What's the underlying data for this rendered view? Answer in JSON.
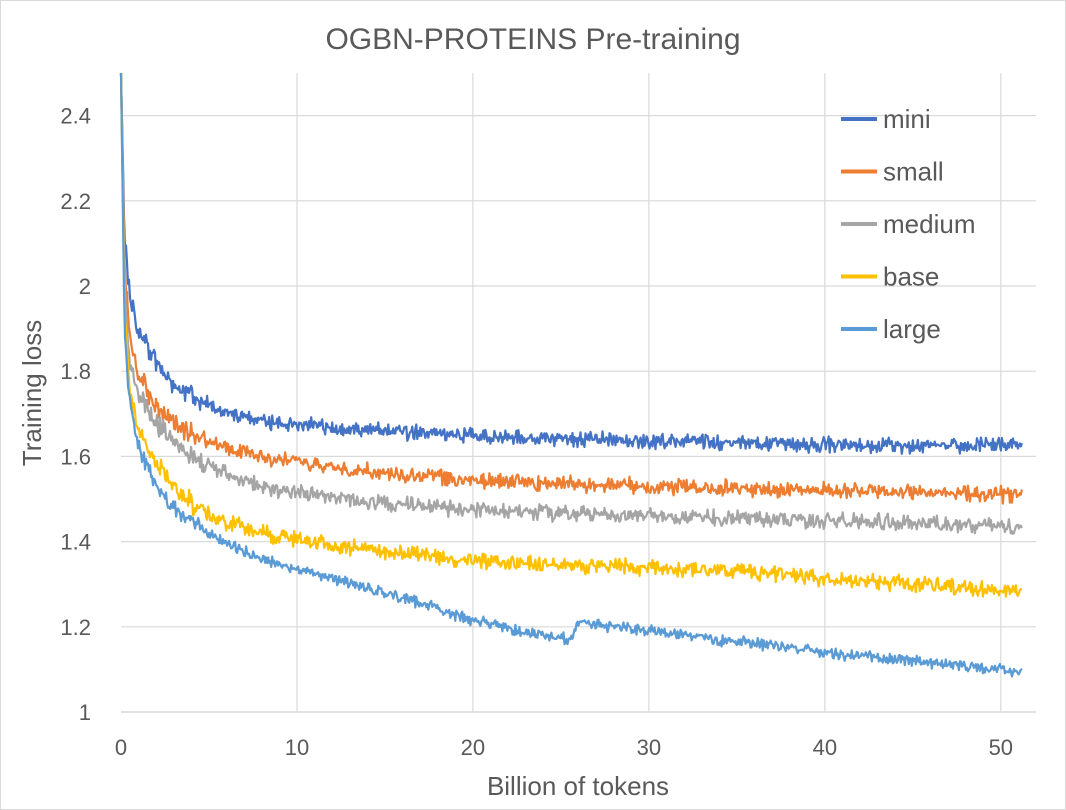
{
  "chart_data": {
    "type": "line",
    "title": "OGBN-PROTEINS Pre-training",
    "xlabel": "Billion of tokens",
    "ylabel": "Training loss",
    "xlim": [
      0,
      52
    ],
    "ylim": [
      1,
      2.5
    ],
    "xticks": [
      0,
      10,
      20,
      30,
      40,
      50
    ],
    "yticks": [
      1,
      1.2,
      1.4,
      1.6,
      1.8,
      2,
      2.2,
      2.4
    ],
    "x_end": 51.2,
    "grid": true,
    "legend_position": "top-right",
    "series": [
      {
        "name": "mini",
        "color": "#4472C4",
        "noise": 0.022,
        "points": [
          [
            0,
            2.5
          ],
          [
            0.2,
            2.12
          ],
          [
            0.5,
            1.97
          ],
          [
            1,
            1.9
          ],
          [
            2,
            1.82
          ],
          [
            3,
            1.77
          ],
          [
            4,
            1.74
          ],
          [
            5,
            1.72
          ],
          [
            6,
            1.7
          ],
          [
            8,
            1.685
          ],
          [
            10,
            1.675
          ],
          [
            15,
            1.66
          ],
          [
            20,
            1.648
          ],
          [
            25,
            1.642
          ],
          [
            30,
            1.635
          ],
          [
            35,
            1.632
          ],
          [
            40,
            1.628
          ],
          [
            45,
            1.625
          ],
          [
            51.2,
            1.625
          ]
        ]
      },
      {
        "name": "small",
        "color": "#ED7D31",
        "noise": 0.022,
        "points": [
          [
            0,
            2.5
          ],
          [
            0.2,
            2.05
          ],
          [
            0.5,
            1.88
          ],
          [
            1,
            1.79
          ],
          [
            2,
            1.72
          ],
          [
            3,
            1.68
          ],
          [
            4,
            1.655
          ],
          [
            5,
            1.635
          ],
          [
            6,
            1.62
          ],
          [
            8,
            1.6
          ],
          [
            10,
            1.585
          ],
          [
            15,
            1.56
          ],
          [
            20,
            1.545
          ],
          [
            25,
            1.535
          ],
          [
            30,
            1.53
          ],
          [
            35,
            1.525
          ],
          [
            40,
            1.52
          ],
          [
            45,
            1.515
          ],
          [
            51.2,
            1.51
          ]
        ]
      },
      {
        "name": "medium",
        "color": "#A5A5A5",
        "noise": 0.022,
        "points": [
          [
            0,
            2.5
          ],
          [
            0.2,
            2.0
          ],
          [
            0.5,
            1.82
          ],
          [
            1,
            1.74
          ],
          [
            2,
            1.68
          ],
          [
            3,
            1.63
          ],
          [
            4,
            1.6
          ],
          [
            5,
            1.575
          ],
          [
            6,
            1.56
          ],
          [
            8,
            1.53
          ],
          [
            10,
            1.515
          ],
          [
            15,
            1.49
          ],
          [
            20,
            1.475
          ],
          [
            25,
            1.465
          ],
          [
            30,
            1.46
          ],
          [
            35,
            1.455
          ],
          [
            40,
            1.45
          ],
          [
            45,
            1.445
          ],
          [
            51.2,
            1.435
          ]
        ]
      },
      {
        "name": "base",
        "color": "#FFC000",
        "noise": 0.022,
        "points": [
          [
            0,
            2.5
          ],
          [
            0.2,
            1.95
          ],
          [
            0.5,
            1.75
          ],
          [
            1,
            1.66
          ],
          [
            2,
            1.58
          ],
          [
            3,
            1.53
          ],
          [
            4,
            1.49
          ],
          [
            5,
            1.465
          ],
          [
            6,
            1.445
          ],
          [
            8,
            1.42
          ],
          [
            10,
            1.405
          ],
          [
            15,
            1.375
          ],
          [
            20,
            1.355
          ],
          [
            25,
            1.345
          ],
          [
            30,
            1.34
          ],
          [
            35,
            1.33
          ],
          [
            40,
            1.315
          ],
          [
            45,
            1.3
          ],
          [
            51.2,
            1.285
          ]
        ]
      },
      {
        "name": "large",
        "color": "#5B9BD5",
        "noise": 0.016,
        "points": [
          [
            0,
            2.5
          ],
          [
            0.2,
            1.9
          ],
          [
            0.5,
            1.72
          ],
          [
            1,
            1.62
          ],
          [
            2,
            1.53
          ],
          [
            3,
            1.48
          ],
          [
            4,
            1.445
          ],
          [
            5,
            1.42
          ],
          [
            6,
            1.395
          ],
          [
            8,
            1.36
          ],
          [
            10,
            1.335
          ],
          [
            15,
            1.28
          ],
          [
            20,
            1.215
          ],
          [
            24,
            1.18
          ],
          [
            25.5,
            1.17
          ],
          [
            26,
            1.21
          ],
          [
            27,
            1.205
          ],
          [
            30,
            1.19
          ],
          [
            35,
            1.165
          ],
          [
            40,
            1.14
          ],
          [
            45,
            1.12
          ],
          [
            51.2,
            1.095
          ]
        ]
      }
    ]
  }
}
